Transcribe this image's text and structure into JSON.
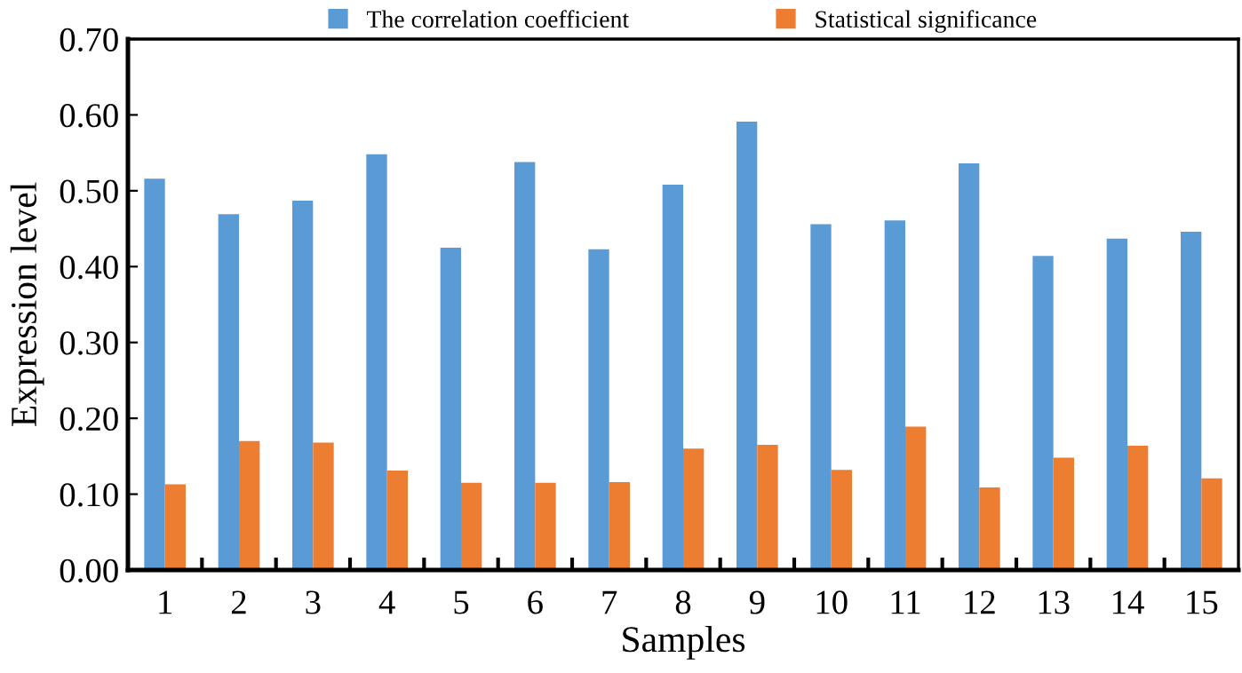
{
  "chart_data": {
    "type": "bar",
    "xlabel": "Samples",
    "ylabel": "Expression level",
    "categories": [
      "1",
      "2",
      "3",
      "4",
      "5",
      "6",
      "7",
      "8",
      "9",
      "10",
      "11",
      "12",
      "13",
      "14",
      "15"
    ],
    "series": [
      {
        "name": "The correlation coefficient",
        "color": "#5b9bd5",
        "values": [
          0.516,
          0.469,
          0.487,
          0.548,
          0.425,
          0.538,
          0.423,
          0.508,
          0.591,
          0.456,
          0.461,
          0.536,
          0.414,
          0.437,
          0.446
        ]
      },
      {
        "name": "Statistical significance",
        "color": "#ed7d31",
        "values": [
          0.113,
          0.17,
          0.168,
          0.131,
          0.115,
          0.115,
          0.116,
          0.16,
          0.165,
          0.132,
          0.189,
          0.109,
          0.148,
          0.164,
          0.121
        ]
      }
    ],
    "ylim": [
      0,
      0.7
    ],
    "yticks": [
      {
        "value": 0,
        "label": "0.00"
      },
      {
        "value": 0.1,
        "label": "0.10"
      },
      {
        "value": 0.2,
        "label": "0.20"
      },
      {
        "value": 0.3,
        "label": "0.30"
      },
      {
        "value": 0.4,
        "label": "0.40"
      },
      {
        "value": 0.5,
        "label": "0.50"
      },
      {
        "value": 0.6,
        "label": "0.60"
      },
      {
        "value": 0.7,
        "label": "0.70"
      }
    ],
    "grid": false,
    "legend": "top"
  }
}
